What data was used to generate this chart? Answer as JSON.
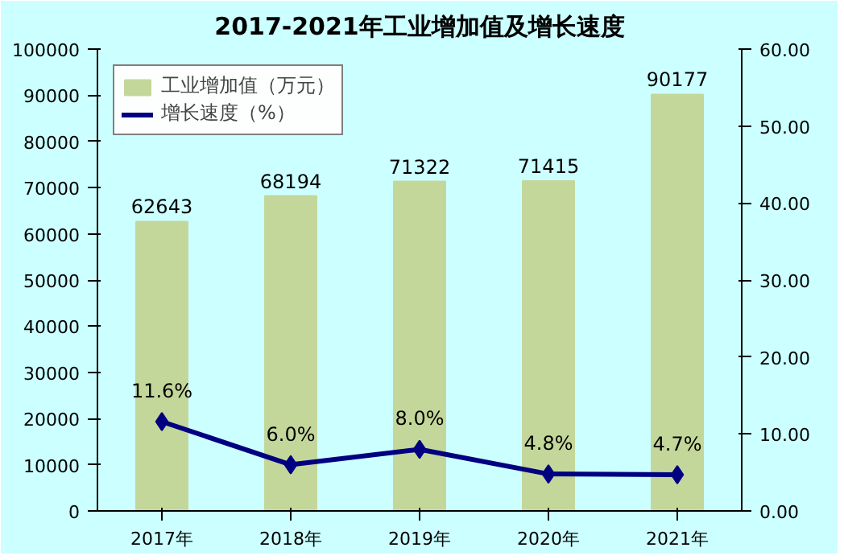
{
  "chart_data": {
    "type": "bar",
    "title": "2017-2021年工业增加值及增长速度",
    "categories": [
      "2017年",
      "2018年",
      "2019年",
      "2020年",
      "2021年"
    ],
    "series": [
      {
        "name": "工业增加值（万元）",
        "color": "#c4d79b",
        "values": [
          62643,
          68194,
          71322,
          71415,
          90177
        ],
        "value_labels": [
          "62643",
          "68194",
          "71322",
          "71415",
          "90177"
        ]
      },
      {
        "name": "增长速度（%）",
        "type": "line",
        "axis": "y2",
        "color": "#000080",
        "marker": "diamond",
        "values": [
          11.6,
          6.0,
          8.0,
          4.8,
          4.7
        ],
        "value_labels": [
          "11.6%",
          "6.0%",
          "8.0%",
          "4.8%",
          "4.7%"
        ]
      }
    ],
    "ylim": [
      0,
      100000
    ],
    "yticks": [
      0,
      10000,
      20000,
      30000,
      40000,
      50000,
      60000,
      70000,
      80000,
      90000,
      100000
    ],
    "y2lim": [
      0,
      60
    ],
    "y2ticks": [
      {
        "value": 0,
        "label": "0.00"
      },
      {
        "value": 10,
        "label": "10.00"
      },
      {
        "value": 20,
        "label": "20.00"
      },
      {
        "value": 30,
        "label": "30.00"
      },
      {
        "value": 40,
        "label": "40.00"
      },
      {
        "value": 50,
        "label": "50.00"
      },
      {
        "value": 60,
        "label": "60.00"
      }
    ],
    "grid": false,
    "legend": "top left"
  }
}
